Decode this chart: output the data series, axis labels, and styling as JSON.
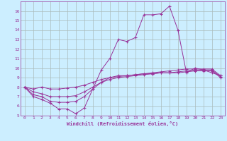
{
  "xlabel": "Windchill (Refroidissement éolien,°C)",
  "background_color": "#cceeff",
  "line_color": "#993399",
  "grid_color": "#aabbbb",
  "xlim": [
    -0.5,
    23.5
  ],
  "ylim": [
    5,
    17
  ],
  "xticks": [
    0,
    1,
    2,
    3,
    4,
    5,
    6,
    7,
    8,
    9,
    10,
    11,
    12,
    13,
    14,
    15,
    16,
    17,
    18,
    19,
    20,
    21,
    22,
    23
  ],
  "yticks": [
    5,
    6,
    7,
    8,
    9,
    10,
    11,
    12,
    13,
    14,
    15,
    16
  ],
  "curve1_x": [
    0,
    1,
    2,
    3,
    4,
    5,
    6,
    7,
    8,
    9,
    10,
    11,
    12,
    13,
    14,
    15,
    16,
    17,
    18,
    19,
    20,
    21,
    22,
    23
  ],
  "curve1_y": [
    8.0,
    7.0,
    6.7,
    6.3,
    5.7,
    5.7,
    5.2,
    5.8,
    7.8,
    9.8,
    11.0,
    13.0,
    12.8,
    13.2,
    15.6,
    15.6,
    15.7,
    16.5,
    14.0,
    9.5,
    10.0,
    9.8,
    9.5,
    9.2
  ],
  "curve2_x": [
    0,
    1,
    2,
    3,
    4,
    5,
    6,
    7,
    8,
    9,
    10,
    11,
    12,
    13,
    14,
    15,
    16,
    17,
    18,
    19,
    20,
    21,
    22,
    23
  ],
  "curve2_y": [
    8.0,
    7.8,
    8.0,
    7.8,
    7.8,
    7.9,
    8.0,
    8.2,
    8.5,
    8.8,
    9.0,
    9.1,
    9.2,
    9.3,
    9.4,
    9.5,
    9.6,
    9.7,
    9.8,
    9.9,
    9.9,
    9.9,
    9.9,
    9.2
  ],
  "curve3_x": [
    0,
    1,
    2,
    3,
    4,
    5,
    6,
    7,
    8,
    9,
    10,
    11,
    12,
    13,
    14,
    15,
    16,
    17,
    18,
    19,
    20,
    21,
    22,
    23
  ],
  "curve3_y": [
    8.0,
    7.5,
    7.3,
    7.0,
    7.0,
    7.0,
    7.1,
    7.5,
    8.0,
    8.5,
    8.8,
    9.0,
    9.1,
    9.2,
    9.3,
    9.4,
    9.5,
    9.5,
    9.6,
    9.7,
    9.8,
    9.8,
    9.8,
    9.1
  ],
  "curve4_x": [
    0,
    1,
    2,
    3,
    4,
    5,
    6,
    7,
    8,
    9,
    10,
    11,
    12,
    13,
    14,
    15,
    16,
    17,
    18,
    19,
    20,
    21,
    22,
    23
  ],
  "curve4_y": [
    8.0,
    7.2,
    7.0,
    6.5,
    6.4,
    6.4,
    6.5,
    7.0,
    7.8,
    8.5,
    9.0,
    9.2,
    9.2,
    9.3,
    9.4,
    9.4,
    9.5,
    9.5,
    9.5,
    9.6,
    9.7,
    9.7,
    9.7,
    9.0
  ]
}
